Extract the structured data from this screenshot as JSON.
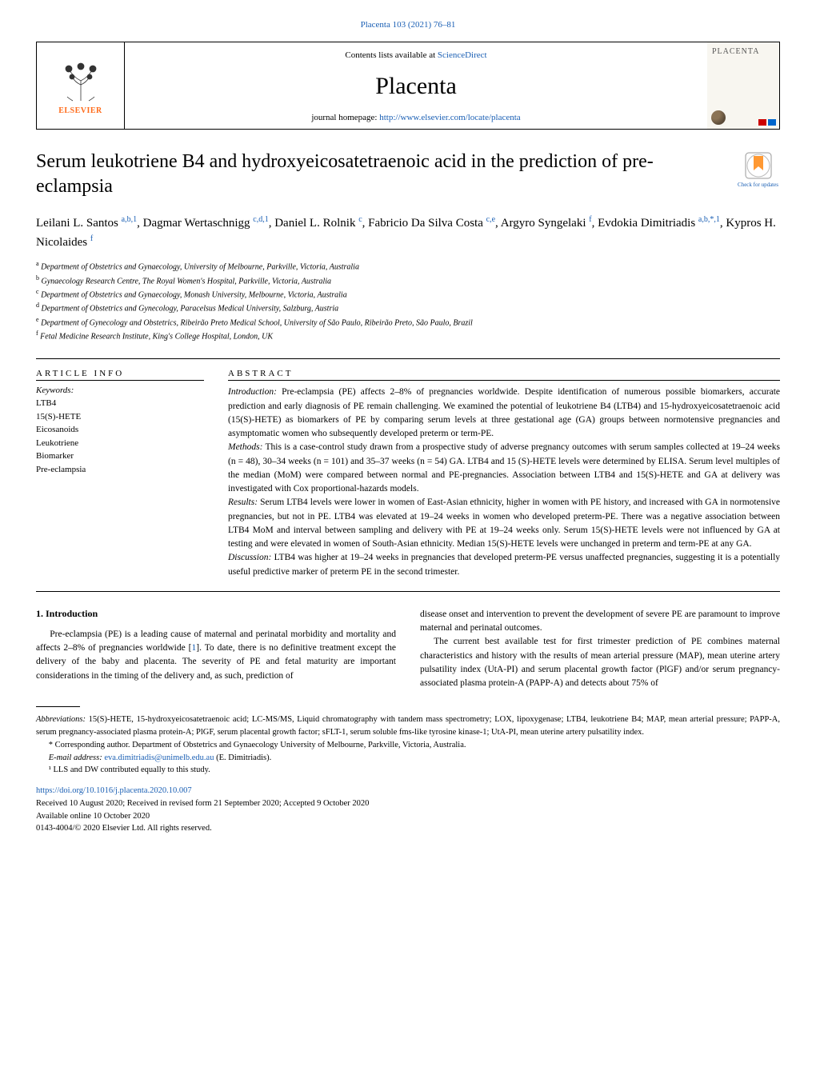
{
  "journal_ref": {
    "text": "Placenta 103 (2021) 76–81",
    "link_text": "Placenta 103 (2021) 76–81"
  },
  "header": {
    "contents_prefix": "Contents lists available at ",
    "contents_link": "ScienceDirect",
    "journal_name": "Placenta",
    "homepage_prefix": "journal homepage: ",
    "homepage_link": "http://www.elsevier.com/locate/placenta",
    "elsevier_label": "ELSEVIER",
    "cover_title": "PLACENTA"
  },
  "article": {
    "title": "Serum leukotriene B4 and hydroxyeicosatetraenoic acid in the prediction of pre-eclampsia",
    "updates_label": "Check for updates"
  },
  "authors_html": "Leilani L. Santos <sup>a,b,1</sup>, Dagmar Wertaschnigg <sup>c,d,1</sup>, Daniel L. Rolnik <sup>c</sup>, Fabricio Da Silva Costa <sup>c,e</sup>, Argyro Syngelaki <sup>f</sup>, Evdokia Dimitriadis <sup>a,b,*,1</sup>, Kypros H. Nicolaides <sup>f</sup>",
  "affiliations": [
    {
      "sup": "a",
      "text": "Department of Obstetrics and Gynaecology, University of Melbourne, Parkville, Victoria, Australia"
    },
    {
      "sup": "b",
      "text": "Gynaecology Research Centre, The Royal Women's Hospital, Parkville, Victoria, Australia"
    },
    {
      "sup": "c",
      "text": "Department of Obstetrics and Gynaecology, Monash University, Melbourne, Victoria, Australia"
    },
    {
      "sup": "d",
      "text": "Department of Obstetrics and Gynecology, Paracelsus Medical University, Salzburg, Austria"
    },
    {
      "sup": "e",
      "text": "Department of Gynecology and Obstetrics, Ribeirão Preto Medical School, University of São Paulo, Ribeirão Preto, São Paulo, Brazil"
    },
    {
      "sup": "f",
      "text": "Fetal Medicine Research Institute, King's College Hospital, London, UK"
    }
  ],
  "article_info": {
    "heading": "ARTICLE INFO",
    "keywords_label": "Keywords:",
    "keywords": [
      "LTB4",
      "15(S)-HETE",
      "Eicosanoids",
      "Leukotriene",
      "Biomarker",
      "Pre-eclampsia"
    ]
  },
  "abstract": {
    "heading": "ABSTRACT",
    "intro_label": "Introduction:",
    "intro": "Pre-eclampsia (PE) affects 2–8% of pregnancies worldwide. Despite identification of numerous possible biomarkers, accurate prediction and early diagnosis of PE remain challenging. We examined the potential of leukotriene B4 (LTB4) and 15-hydroxyeicosatetraenoic acid (15(S)-HETE) as biomarkers of PE by comparing serum levels at three gestational age (GA) groups between normotensive pregnancies and asymptomatic women who subsequently developed preterm or term-PE.",
    "methods_label": "Methods:",
    "methods": "This is a case-control study drawn from a prospective study of adverse pregnancy outcomes with serum samples collected at 19–24 weeks (n = 48), 30–34 weeks (n = 101) and 35–37 weeks (n = 54) GA. LTB4 and 15 (S)-HETE levels were determined by ELISA. Serum level multiples of the median (MoM) were compared between normal and PE-pregnancies. Association between LTB4 and 15(S)-HETE and GA at delivery was investigated with Cox proportional-hazards models.",
    "results_label": "Results:",
    "results": "Serum LTB4 levels were lower in women of East-Asian ethnicity, higher in women with PE history, and increased with GA in normotensive pregnancies, but not in PE. LTB4 was elevated at 19–24 weeks in women who developed preterm-PE. There was a negative association between LTB4 MoM and interval between sampling and delivery with PE at 19–24 weeks only. Serum 15(S)-HETE levels were not influenced by GA at testing and were elevated in women of South-Asian ethnicity. Median 15(S)-HETE levels were unchanged in preterm and term-PE at any GA.",
    "discussion_label": "Discussion:",
    "discussion": "LTB4 was higher at 19–24 weeks in pregnancies that developed preterm-PE versus unaffected pregnancies, suggesting it is a potentially useful predictive marker of preterm PE in the second trimester."
  },
  "body": {
    "intro_heading": "1.  Introduction",
    "left_para": "Pre-eclampsia (PE) is a leading cause of maternal and perinatal morbidity and mortality and affects 2–8% of pregnancies worldwide [1]. To date, there is no definitive treatment except the delivery of the baby and placenta. The severity of PE and fetal maturity are important considerations in the timing of the delivery and, as such, prediction of",
    "right_para1": "disease onset and intervention to prevent the development of severe PE are paramount to improve maternal and perinatal outcomes.",
    "right_para2": "The current best available test for first trimester prediction of PE combines maternal characteristics and history with the results of mean arterial pressure (MAP), mean uterine artery pulsatility index (UtA-PI) and serum placental growth factor (PlGF) and/or serum pregnancy-associated plasma protein-A (PAPP-A) and detects about 75% of"
  },
  "footer": {
    "abbrev_label": "Abbreviations:",
    "abbrev_text": "15(S)-HETE, 15-hydroxyeicosatetraenoic acid; LC-MS/MS, Liquid chromatography with tandem mass spectrometry; LOX, lipoxygenase; LTB4, leukotriene B4; MAP, mean arterial pressure; PAPP-A, serum pregnancy-associated plasma protein-A; PlGF, serum placental growth factor; sFLT-1, serum soluble fms-like tyrosine kinase-1; UtA-PI, mean uterine artery pulsatility index.",
    "corr_text": "* Corresponding author. Department of Obstetrics and Gynaecology University of Melbourne, Parkville, Victoria, Australia.",
    "email_label": "E-mail address:",
    "email_link": "eva.dimitriadis@unimelb.edu.au",
    "email_suffix": "(E. Dimitriadis).",
    "contrib_note": "¹ LLS and DW contributed equally to this study.",
    "doi_link": "https://doi.org/10.1016/j.placenta.2020.10.007",
    "received": "Received 10 August 2020; Received in revised form 21 September 2020; Accepted 9 October 2020",
    "available": "Available online 10 October 2020",
    "copyright": "0143-4004/© 2020 Elsevier Ltd. All rights reserved."
  },
  "colors": {
    "link": "#1a5fb4",
    "elsevier_orange": "#ff6b1a"
  }
}
